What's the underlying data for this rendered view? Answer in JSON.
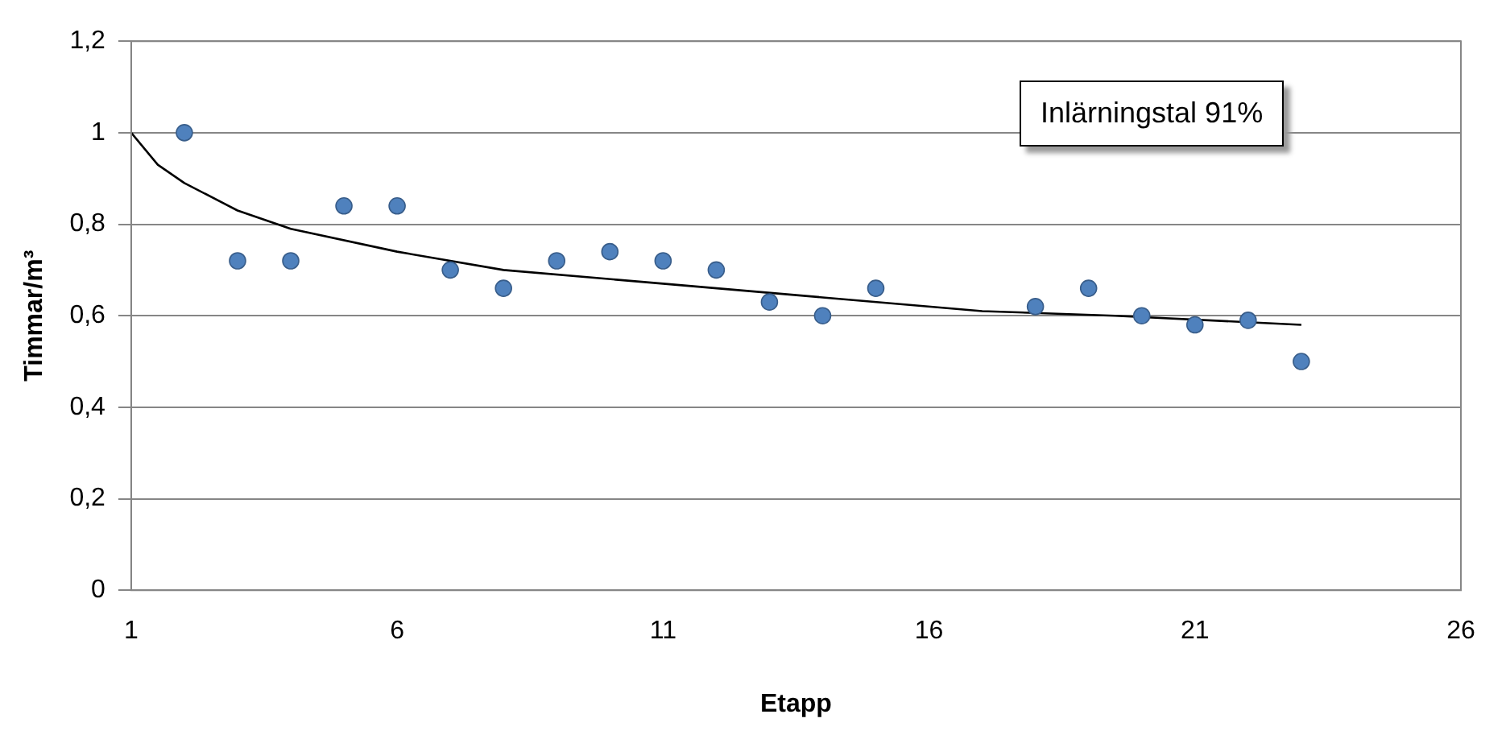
{
  "chart_data": {
    "type": "scatter",
    "xlabel": "Etapp",
    "ylabel": "Timmar/m³",
    "annotations": [
      "Inlärningstal 91%"
    ],
    "xlim": [
      1,
      26
    ],
    "xticks": [
      1,
      6,
      11,
      16,
      21,
      26
    ],
    "ylim": [
      0,
      1.2
    ],
    "yticks": [
      0,
      {
        "value": 0.2,
        "label": "0,2"
      },
      {
        "value": 0.4,
        "label": "0,4"
      },
      {
        "value": 0.6,
        "label": "0,6"
      },
      {
        "value": 0.8,
        "label": "0,8"
      },
      1,
      {
        "value": 1.2,
        "label": "1,2"
      }
    ],
    "grid": "y",
    "legend": false,
    "series": [
      {
        "color": "#4f81bd",
        "marker": "circle",
        "x": [
          2,
          3,
          4,
          5,
          6,
          7,
          8,
          9,
          10,
          11,
          12,
          13,
          14,
          15,
          18,
          19,
          20,
          21,
          22,
          23
        ],
        "values": [
          1.0,
          0.72,
          0.72,
          0.84,
          0.84,
          0.7,
          0.66,
          0.72,
          0.74,
          0.72,
          0.7,
          0.63,
          0.6,
          0.66,
          0.62,
          0.66,
          0.6,
          0.58,
          0.59,
          0.5
        ]
      },
      {
        "type": "line",
        "color": "#000000",
        "marker": "none",
        "line_style": "solid",
        "x": [
          1,
          1.5,
          2,
          3,
          4,
          6,
          8,
          11,
          14,
          17,
          19.5,
          23
        ],
        "values": [
          1.0,
          0.93,
          0.89,
          0.83,
          0.79,
          0.74,
          0.7,
          0.67,
          0.64,
          0.61,
          0.6,
          0.58
        ]
      }
    ]
  }
}
